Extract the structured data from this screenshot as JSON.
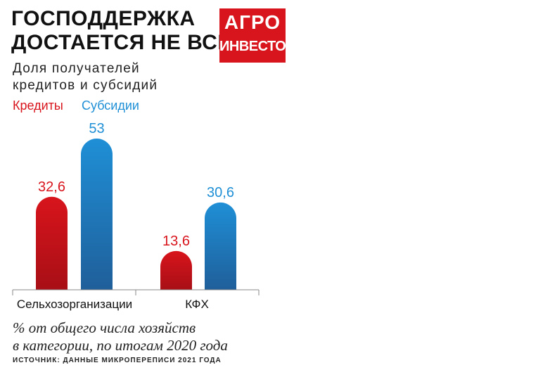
{
  "header": {
    "title_line1": "ГОСПОДДЕРЖКА",
    "title_line2": "ДОСТАЕТСЯ НЕ ВСЕМ",
    "subtitle_line1": "Доля получателей",
    "subtitle_line2": "кредитов и субсидий"
  },
  "logo": {
    "line1": "АГРО",
    "line2": "ИНВЕСТОР"
  },
  "legend": {
    "credits": "Кредиты",
    "subsidies": "Субсидии"
  },
  "colors": {
    "credits": "#d8141c",
    "subsidies": "#1f8fd6",
    "subsidies_dark": "#1f5f9a",
    "credits_dark": "#a80f16"
  },
  "chart_data": {
    "type": "bar",
    "categories": [
      "Сельхозорганизации",
      "КФХ"
    ],
    "series": [
      {
        "name": "Кредиты",
        "values": [
          32.6,
          13.6
        ],
        "labels": [
          "32,6",
          "13,6"
        ]
      },
      {
        "name": "Субсидии",
        "values": [
          53,
          30.6
        ],
        "labels": [
          "53",
          "30,6"
        ]
      }
    ],
    "ylim": [
      0,
      53
    ]
  },
  "footer": {
    "note_line1": "% от общего числа хозяйств",
    "note_line2": "в категории, по итогам 2020 года",
    "source": "ИСТОЧНИК: ДАННЫЕ МИКРОПЕРЕПИСИ 2021 ГОДА"
  }
}
